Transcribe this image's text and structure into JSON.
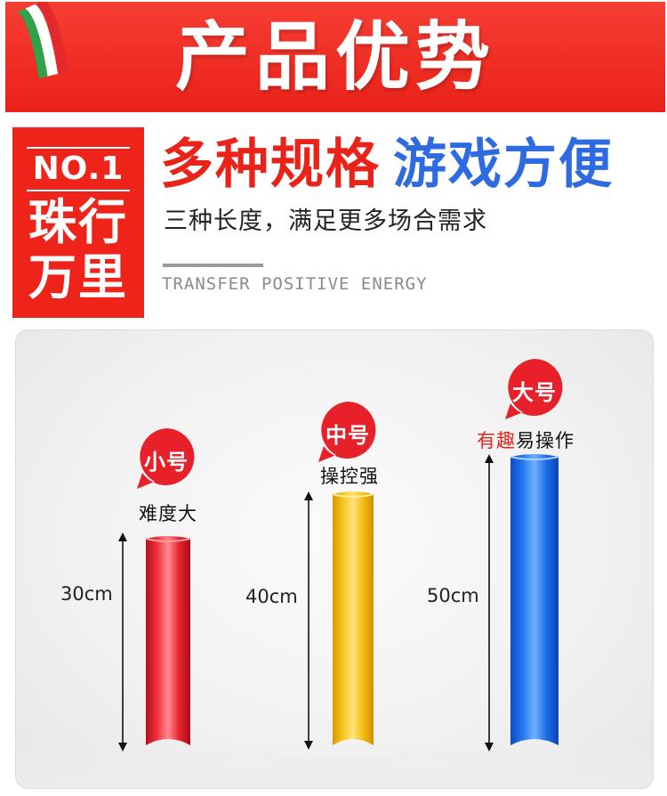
{
  "header": {
    "title": "产品优势",
    "flag_icon": "italy-flag-icon",
    "banner_color": "#ee2a1f"
  },
  "feature": {
    "rank": "NO.1",
    "tagline": "珠行万里",
    "headline_red": "多种规格",
    "headline_blue": "游戏方便",
    "subline": "三种长度，满足更多场合需求",
    "english": "TRANSFER POSITIVE ENERGY",
    "red_color": "#e9231a",
    "blue_color": "#2f6be0"
  },
  "products": [
    {
      "badge": "小号",
      "caption": "难度大",
      "length": "30cm",
      "color": "#e8202a"
    },
    {
      "badge": "中号",
      "caption": "操控强",
      "length": "40cm",
      "color": "#f7c21a"
    },
    {
      "badge": "大号",
      "caption_red": "有趣",
      "caption": "易操作",
      "length": "50cm",
      "color": "#1e6fe8"
    }
  ]
}
